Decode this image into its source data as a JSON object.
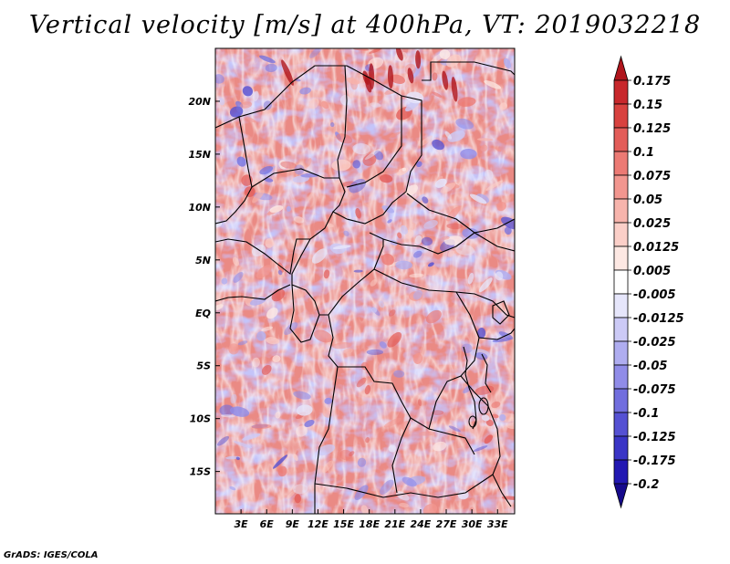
{
  "chart_data": {
    "type": "heatmap",
    "title": "Vertical velocity [m/s] at 400hPa, VT: 2019032218",
    "variable": "Vertical velocity",
    "units": "m/s",
    "level": "400hPa",
    "valid_time": "2019032218",
    "x_axis": {
      "range_deg_east": [
        0,
        35
      ],
      "ticks": [
        {
          "value": 3,
          "label": "3E"
        },
        {
          "value": 6,
          "label": "6E"
        },
        {
          "value": 9,
          "label": "9E"
        },
        {
          "value": 12,
          "label": "12E"
        },
        {
          "value": 15,
          "label": "15E"
        },
        {
          "value": 18,
          "label": "18E"
        },
        {
          "value": 21,
          "label": "21E"
        },
        {
          "value": 24,
          "label": "24E"
        },
        {
          "value": 27,
          "label": "27E"
        },
        {
          "value": 30,
          "label": "30E"
        },
        {
          "value": 33,
          "label": "33E"
        }
      ]
    },
    "y_axis": {
      "range_deg_north": [
        -19,
        25
      ],
      "ticks": [
        {
          "value": 20,
          "label": "20N"
        },
        {
          "value": 15,
          "label": "15N"
        },
        {
          "value": 10,
          "label": "10N"
        },
        {
          "value": 5,
          "label": "5N"
        },
        {
          "value": 0,
          "label": "EQ"
        },
        {
          "value": -5,
          "label": "5S"
        },
        {
          "value": -10,
          "label": "10S"
        },
        {
          "value": -15,
          "label": "15S"
        }
      ]
    },
    "colorbar": {
      "orientation": "vertical",
      "placement": "right",
      "levels": [
        "0.175",
        "0.15",
        "0.125",
        "0.1",
        "0.075",
        "0.05",
        "0.025",
        "0.0125",
        "0.005",
        "-0.005",
        "-0.0125",
        "-0.025",
        "-0.05",
        "-0.075",
        "-0.1",
        "-0.125",
        "-0.175",
        "-0.2"
      ],
      "colors": [
        "#b0151c",
        "#c8282c",
        "#d8423f",
        "#e35d59",
        "#ec7a74",
        "#f2968f",
        "#f7b4ac",
        "#fbcfc8",
        "#fde8e3",
        "#ffffff",
        "#e6e6fb",
        "#cccaf6",
        "#afadf0",
        "#908ce8",
        "#716ede",
        "#5551d3",
        "#3a35c6",
        "#2218b2",
        "#160a8c"
      ]
    },
    "background_field": {
      "positive": "#ea8a84",
      "negative": "#8c8ef0",
      "neutral": "#f7e9ee"
    }
  },
  "credit": "GrADS: IGES/COLA"
}
